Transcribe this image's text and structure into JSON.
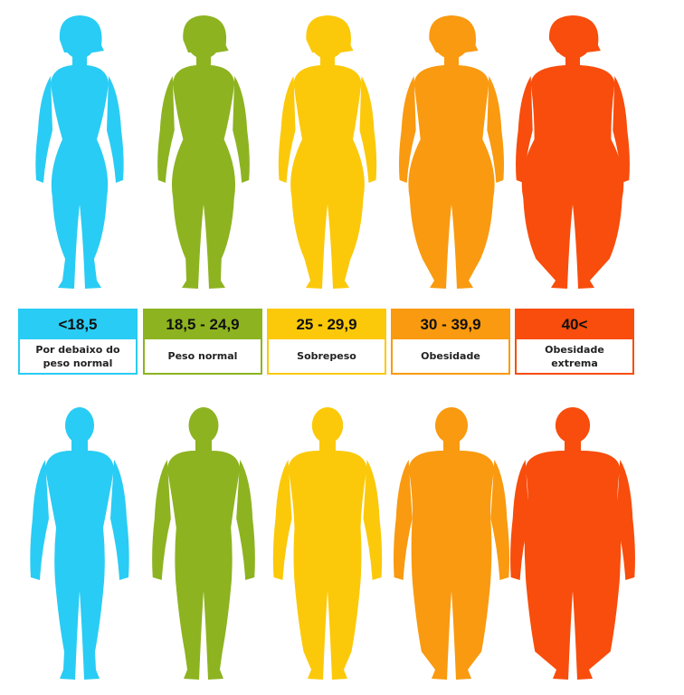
{
  "categories": [
    {
      "range": "<18,5",
      "label": "Por debaixo do peso normal",
      "color": "#29CCF4",
      "body": "slim"
    },
    {
      "range": "18,5 - 24,9",
      "label": "Peso normal",
      "color": "#8DB321",
      "body": "normal"
    },
    {
      "range": "25 - 29,9",
      "label": "Sobrepeso",
      "color": "#FBC90A",
      "body": "overweight"
    },
    {
      "range": "30 - 39,9",
      "label": "Obesidade",
      "color": "#F99A10",
      "body": "obese"
    },
    {
      "range": "40<",
      "label": "Obesidade extrema",
      "color": "#F84D0C",
      "body": "extreme"
    }
  ],
  "rows": [
    {
      "gender": "female",
      "icon": "woman-silhouette-icon"
    },
    {
      "gender": "male",
      "icon": "man-silhouette-icon"
    }
  ]
}
